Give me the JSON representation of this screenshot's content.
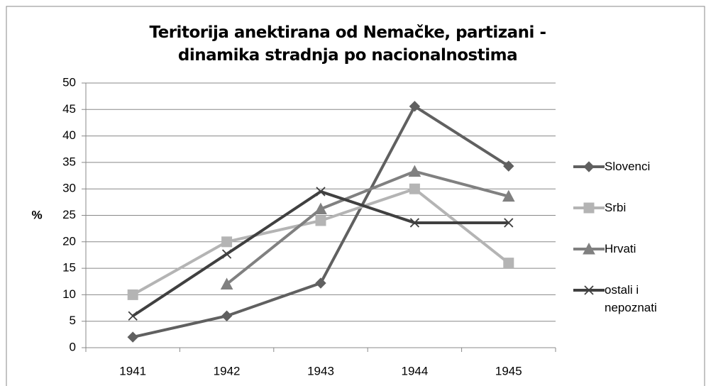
{
  "chart_data": {
    "type": "line",
    "title": "Teritorija anektirana od Nemačke, partizani - dinamika stradnja po nacionalnostima",
    "ylabel": "%",
    "categories": [
      "1941",
      "1942",
      "1943",
      "1944",
      "1945"
    ],
    "series": [
      {
        "name": "Slovenci",
        "color": "#606060",
        "marker": "diamond",
        "values": [
          2,
          6,
          12.2,
          45.6,
          34.3
        ]
      },
      {
        "name": "Srbi",
        "color": "#b4b4b4",
        "marker": "square",
        "values": [
          10,
          20,
          24,
          30,
          16
        ]
      },
      {
        "name": "Hrvati",
        "color": "#808080",
        "marker": "triangle",
        "values": [
          null,
          12,
          26.2,
          33.3,
          28.6
        ]
      },
      {
        "name": "ostali i nepoznati",
        "color": "#404040",
        "marker": "x",
        "values": [
          6,
          17.7,
          29.5,
          23.6,
          23.6
        ]
      }
    ],
    "ylim": [
      0,
      50
    ],
    "yticks": [
      0,
      5,
      10,
      15,
      20,
      25,
      30,
      35,
      40,
      45,
      50
    ],
    "grid": true,
    "legend": "right"
  }
}
